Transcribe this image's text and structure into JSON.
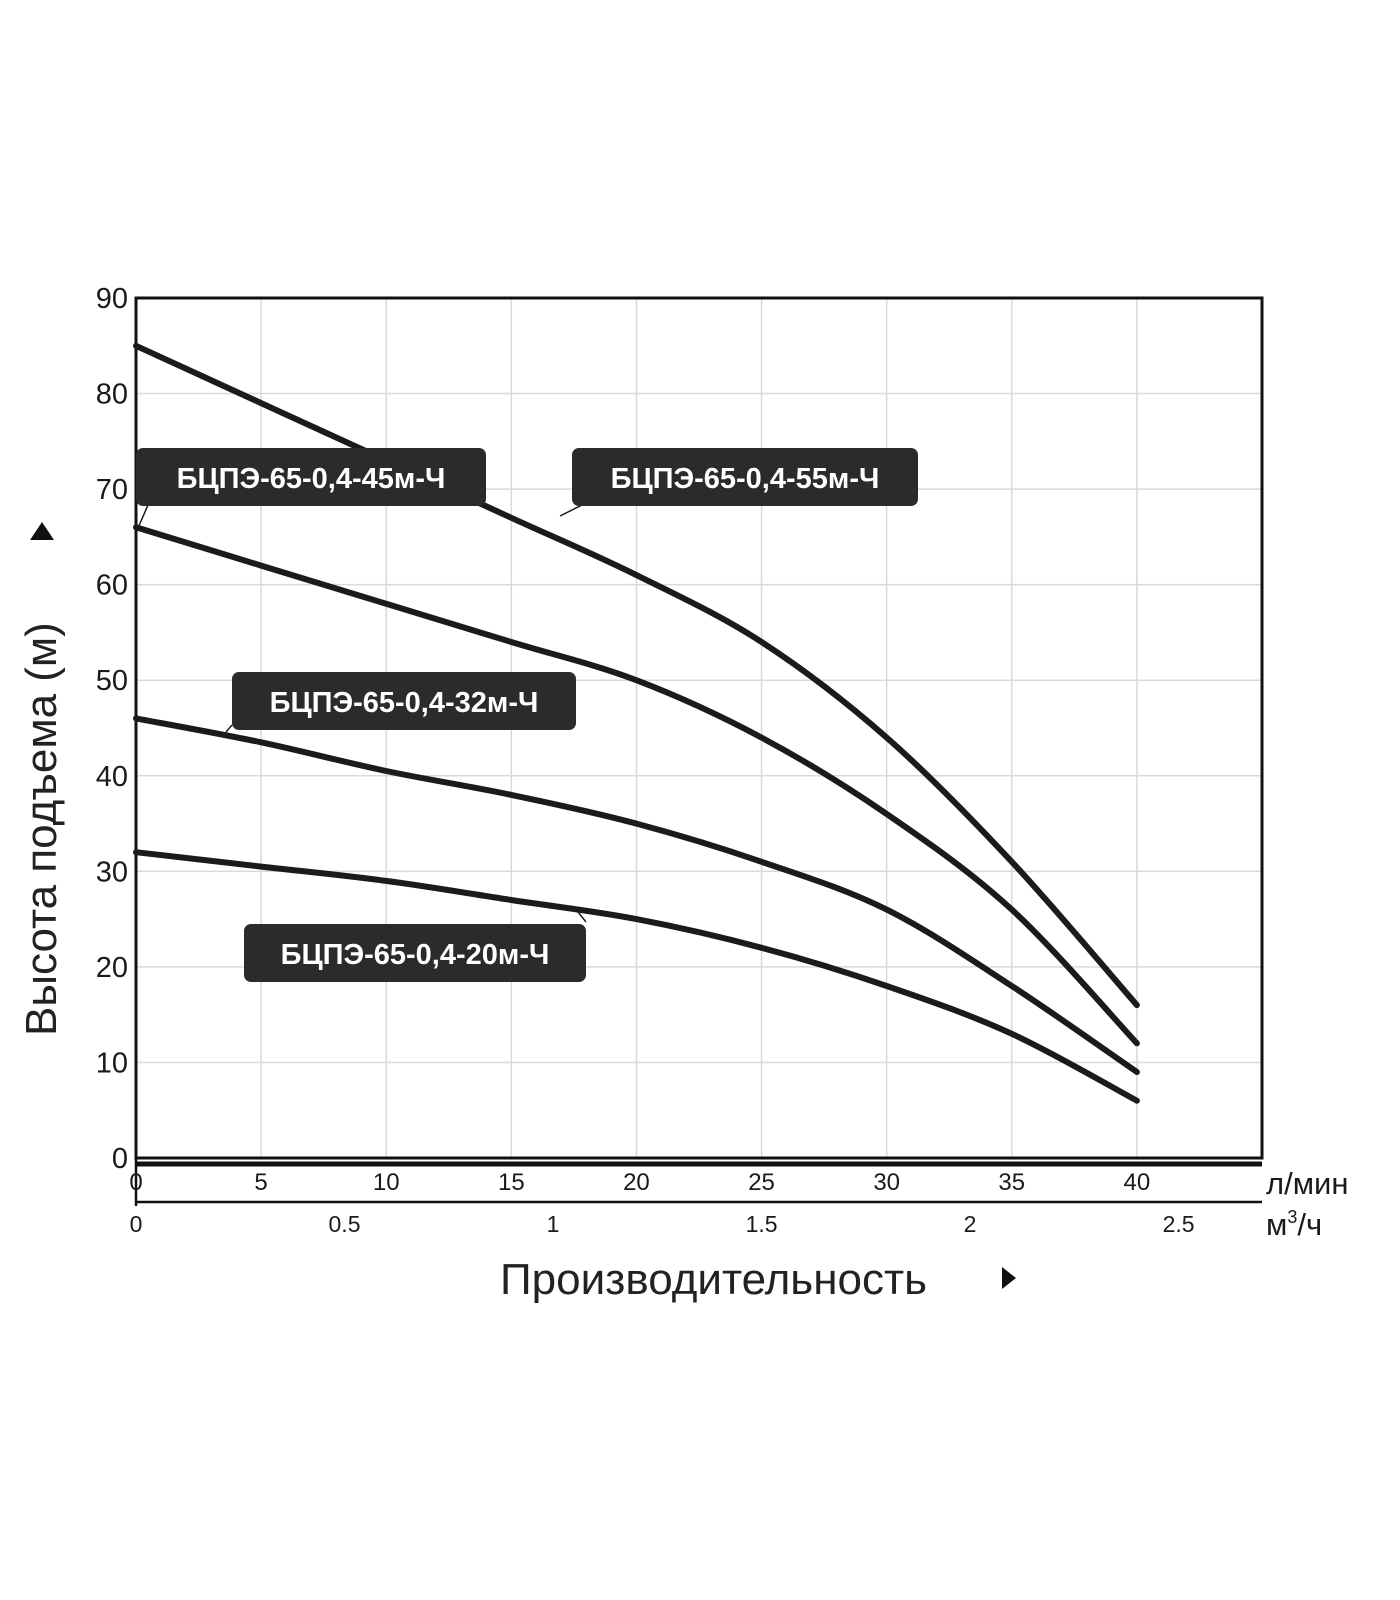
{
  "chart_data": {
    "type": "line",
    "ylabel": "Высота подъема (м)",
    "xlabel": "Производительность",
    "x_unit": "л/мин",
    "x2_unit": "м³/ч",
    "x2_unit_base": "м",
    "x2_unit_sup": "3",
    "x2_unit_tail": "/ч",
    "xlim": [
      0,
      45
    ],
    "ylim": [
      0,
      90
    ],
    "x2lim": [
      0,
      2.7
    ],
    "y_ticks": [
      0,
      10,
      20,
      30,
      40,
      50,
      60,
      70,
      80,
      90
    ],
    "x_ticks": [
      0,
      5,
      10,
      15,
      20,
      25,
      30,
      35,
      40
    ],
    "x2_ticks": [
      "0",
      "0.5",
      "1",
      "1.5",
      "2",
      "2.5"
    ],
    "grid": true,
    "series": [
      {
        "name": "БЦПЭ-65-0,4-55м-Ч",
        "x": [
          0,
          5,
          10,
          15,
          20,
          25,
          30,
          35,
          40
        ],
        "y": [
          85,
          79,
          73,
          67,
          61,
          54,
          44,
          31,
          16
        ]
      },
      {
        "name": "БЦПЭ-65-0,4-45м-Ч",
        "x": [
          0,
          5,
          10,
          15,
          20,
          25,
          30,
          35,
          40
        ],
        "y": [
          66,
          62,
          58,
          54,
          50,
          44,
          36,
          26,
          12
        ]
      },
      {
        "name": "БЦПЭ-65-0,4-32м-Ч",
        "x": [
          0,
          5,
          10,
          15,
          20,
          25,
          30,
          35,
          40
        ],
        "y": [
          46,
          43.5,
          40.5,
          38,
          35,
          31,
          26,
          18,
          9
        ]
      },
      {
        "name": "БЦПЭ-65-0,4-20м-Ч",
        "x": [
          0,
          5,
          10,
          15,
          20,
          25,
          30,
          35,
          40
        ],
        "y": [
          32,
          30.5,
          29,
          27,
          25,
          22,
          18,
          13,
          6
        ]
      }
    ]
  }
}
